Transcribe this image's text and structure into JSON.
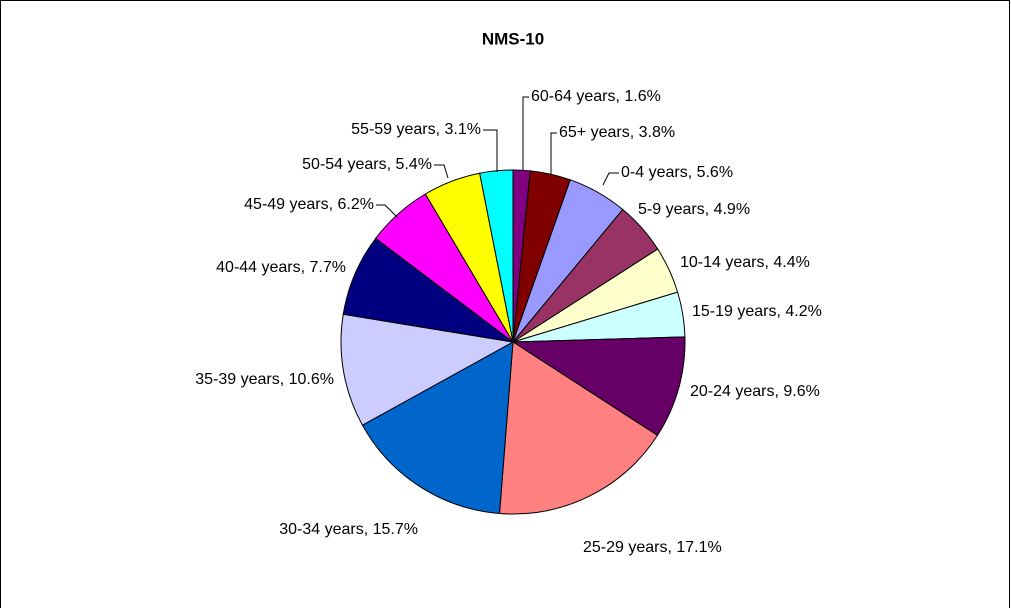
{
  "chart_data": {
    "type": "pie",
    "title": "NMS-10",
    "categories": [
      "60-64 years",
      "65+ years",
      "0-4 years",
      "5-9 years",
      "10-14 years",
      "15-19 years",
      "20-24 years",
      "25-29 years",
      "30-34 years",
      "35-39 years",
      "40-44 years",
      "45-49 years",
      "50-54 years",
      "55-59 years"
    ],
    "values": [
      1.6,
      3.8,
      5.6,
      4.9,
      4.4,
      4.2,
      9.6,
      17.1,
      15.7,
      10.6,
      7.7,
      6.2,
      5.4,
      3.1
    ],
    "value_labels": [
      "60-64 years, 1.6%",
      "65+ years, 3.8%",
      "0-4 years, 5.6%",
      "5-9 years, 4.9%",
      "10-14 years, 4.4%",
      "15-19 years, 4.2%",
      "20-24 years, 9.6%",
      "25-29 years, 17.1%",
      "30-34 years, 15.7%",
      "35-39 years, 10.6%",
      "40-44 years, 7.7%",
      "45-49 years, 6.2%",
      "50-54 years, 5.4%",
      "55-59 years, 3.1%"
    ],
    "colors": [
      "#800080",
      "#800000",
      "#9999ff",
      "#993366",
      "#ffffcc",
      "#ccffff",
      "#660066",
      "#ff8080",
      "#0066cc",
      "#ccccff",
      "#000080",
      "#ff00ff",
      "#ffff00",
      "#00ffff"
    ]
  }
}
